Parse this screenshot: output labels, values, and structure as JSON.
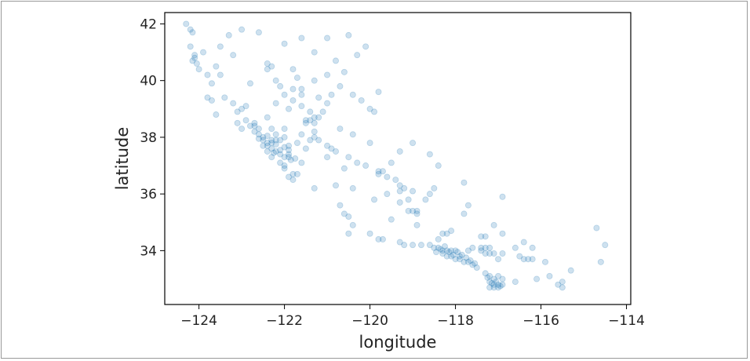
{
  "chart_data": {
    "type": "scatter",
    "title": "",
    "xlabel": "longitude",
    "ylabel": "latitude",
    "xlim": [
      -124.8,
      -113.9
    ],
    "ylim": [
      32.1,
      42.4
    ],
    "x_ticks": [
      -124,
      -122,
      -120,
      -118,
      -116,
      -114
    ],
    "x_tick_labels": [
      "−124",
      "−122",
      "−120",
      "−118",
      "−116",
      "−114"
    ],
    "y_ticks": [
      34,
      36,
      38,
      40,
      42
    ],
    "y_tick_labels": [
      "34",
      "36",
      "38",
      "40",
      "42"
    ],
    "grid": false,
    "legend": "none",
    "point_color": "#1f77b4",
    "point_alpha": 0.1,
    "points": [
      [
        -124.2,
        41.8
      ],
      [
        -124.15,
        41.7
      ],
      [
        -124.1,
        40.8
      ],
      [
        -124.15,
        40.7
      ],
      [
        -124.05,
        40.6
      ],
      [
        -124.1,
        40.9
      ],
      [
        -123.8,
        39.4
      ],
      [
        -123.7,
        39.3
      ],
      [
        -123.5,
        40.2
      ],
      [
        -123.9,
        41.0
      ],
      [
        -123.3,
        41.6
      ],
      [
        -123.6,
        40.5
      ],
      [
        -123.2,
        39.2
      ],
      [
        -123.0,
        39.0
      ],
      [
        -123.1,
        38.9
      ],
      [
        -122.9,
        38.6
      ],
      [
        -122.7,
        38.4
      ],
      [
        -122.6,
        38.3
      ],
      [
        -122.5,
        38.0
      ],
      [
        -122.4,
        37.8
      ],
      [
        -122.3,
        37.8
      ],
      [
        -122.3,
        37.6
      ],
      [
        -122.2,
        37.5
      ],
      [
        -122.1,
        37.4
      ],
      [
        -122.0,
        37.3
      ],
      [
        -121.9,
        37.3
      ],
      [
        -121.9,
        37.4
      ],
      [
        -122.0,
        37.0
      ],
      [
        -121.9,
        36.6
      ],
      [
        -121.8,
        36.7
      ],
      [
        -121.7,
        36.7
      ],
      [
        -122.4,
        37.7
      ],
      [
        -122.5,
        37.7
      ],
      [
        -122.3,
        37.9
      ],
      [
        -122.2,
        37.9
      ],
      [
        -122.1,
        37.9
      ],
      [
        -122.0,
        38.0
      ],
      [
        -122.2,
        38.1
      ],
      [
        -122.6,
        38.1
      ],
      [
        -122.7,
        38.2
      ],
      [
        -122.8,
        38.4
      ],
      [
        -122.7,
        38.5
      ],
      [
        -122.3,
        38.3
      ],
      [
        -122.0,
        38.3
      ],
      [
        -121.5,
        38.6
      ],
      [
        -121.4,
        38.6
      ],
      [
        -121.3,
        38.7
      ],
      [
        -121.2,
        38.7
      ],
      [
        -121.5,
        38.5
      ],
      [
        -121.3,
        38.5
      ],
      [
        -121.4,
        38.9
      ],
      [
        -121.1,
        38.9
      ],
      [
        -121.0,
        39.2
      ],
      [
        -121.6,
        39.7
      ],
      [
        -121.8,
        39.7
      ],
      [
        -122.4,
        40.6
      ],
      [
        -122.3,
        40.5
      ],
      [
        -122.4,
        40.4
      ],
      [
        -122.2,
        40.0
      ],
      [
        -122.1,
        39.8
      ],
      [
        -122.0,
        39.5
      ],
      [
        -121.6,
        39.1
      ],
      [
        -121.9,
        39.0
      ],
      [
        -121.3,
        38.2
      ],
      [
        -121.3,
        38.0
      ],
      [
        -121.2,
        37.9
      ],
      [
        -121.0,
        37.7
      ],
      [
        -120.9,
        37.6
      ],
      [
        -120.8,
        37.5
      ],
      [
        -120.5,
        37.3
      ],
      [
        -120.3,
        37.1
      ],
      [
        -120.1,
        37.0
      ],
      [
        -119.8,
        36.8
      ],
      [
        -119.7,
        36.8
      ],
      [
        -119.8,
        36.7
      ],
      [
        -119.6,
        36.6
      ],
      [
        -119.4,
        36.5
      ],
      [
        -119.3,
        36.3
      ],
      [
        -119.2,
        36.2
      ],
      [
        -119.3,
        36.1
      ],
      [
        -119.0,
        36.1
      ],
      [
        -119.1,
        35.8
      ],
      [
        -119.0,
        35.4
      ],
      [
        -119.1,
        35.4
      ],
      [
        -118.9,
        35.3
      ],
      [
        -118.9,
        35.4
      ],
      [
        -119.3,
        35.7
      ],
      [
        -120.7,
        35.6
      ],
      [
        -120.6,
        35.3
      ],
      [
        -120.5,
        35.2
      ],
      [
        -120.4,
        34.9
      ],
      [
        -120.5,
        34.6
      ],
      [
        -119.8,
        34.4
      ],
      [
        -119.7,
        34.4
      ],
      [
        -119.3,
        34.3
      ],
      [
        -119.2,
        34.2
      ],
      [
        -119.0,
        34.2
      ],
      [
        -118.8,
        34.2
      ],
      [
        -118.6,
        34.2
      ],
      [
        -118.5,
        34.1
      ],
      [
        -118.4,
        34.1
      ],
      [
        -118.3,
        34.0
      ],
      [
        -118.2,
        34.0
      ],
      [
        -118.1,
        34.0
      ],
      [
        -118.0,
        34.0
      ],
      [
        -118.3,
        33.9
      ],
      [
        -118.2,
        33.8
      ],
      [
        -118.1,
        33.8
      ],
      [
        -118.0,
        33.7
      ],
      [
        -117.9,
        33.7
      ],
      [
        -117.9,
        33.8
      ],
      [
        -117.8,
        33.6
      ],
      [
        -117.7,
        33.6
      ],
      [
        -117.6,
        33.5
      ],
      [
        -117.5,
        33.4
      ],
      [
        -117.3,
        33.2
      ],
      [
        -117.2,
        33.1
      ],
      [
        -117.2,
        32.9
      ],
      [
        -117.1,
        32.8
      ],
      [
        -117.1,
        32.7
      ],
      [
        -117.0,
        32.7
      ],
      [
        -117.0,
        32.8
      ],
      [
        -117.2,
        32.7
      ],
      [
        -116.9,
        32.8
      ],
      [
        -116.9,
        33.0
      ],
      [
        -117.7,
        34.0
      ],
      [
        -117.6,
        34.1
      ],
      [
        -117.4,
        34.1
      ],
      [
        -117.3,
        34.1
      ],
      [
        -117.2,
        34.1
      ],
      [
        -117.4,
        34.0
      ],
      [
        -117.3,
        33.9
      ],
      [
        -117.2,
        33.9
      ],
      [
        -117.1,
        33.9
      ],
      [
        -117.0,
        33.7
      ],
      [
        -116.9,
        33.9
      ],
      [
        -116.5,
        33.8
      ],
      [
        -116.4,
        33.7
      ],
      [
        -116.3,
        33.7
      ],
      [
        -116.2,
        33.7
      ],
      [
        -115.6,
        32.8
      ],
      [
        -115.5,
        32.7
      ],
      [
        -115.5,
        32.9
      ],
      [
        -114.6,
        33.6
      ],
      [
        -114.7,
        34.8
      ],
      [
        -116.2,
        34.1
      ],
      [
        -116.4,
        34.3
      ],
      [
        -117.3,
        34.5
      ],
      [
        -117.1,
        34.9
      ],
      [
        -117.8,
        35.3
      ],
      [
        -117.7,
        35.6
      ],
      [
        -118.1,
        34.7
      ],
      [
        -118.2,
        34.6
      ],
      [
        -118.3,
        34.6
      ],
      [
        -118.4,
        34.4
      ],
      [
        -117.8,
        36.4
      ],
      [
        -116.9,
        35.9
      ],
      [
        -118.5,
        36.2
      ],
      [
        -120.7,
        38.3
      ],
      [
        -120.2,
        39.3
      ],
      [
        -120.0,
        39.0
      ],
      [
        -119.9,
        38.9
      ],
      [
        -120.4,
        38.1
      ],
      [
        -120.0,
        37.8
      ],
      [
        -120.6,
        40.3
      ],
      [
        -120.5,
        41.6
      ],
      [
        -121.0,
        41.5
      ],
      [
        -122.0,
        41.3
      ],
      [
        -122.6,
        41.7
      ],
      [
        -123.0,
        41.8
      ],
      [
        -120.1,
        41.2
      ],
      [
        -121.7,
        40.1
      ],
      [
        -121.8,
        40.4
      ],
      [
        -120.8,
        40.7
      ],
      [
        -123.2,
        40.9
      ],
      [
        -123.5,
        41.2
      ],
      [
        -122.8,
        39.9
      ],
      [
        -123.4,
        39.4
      ],
      [
        -122.9,
        39.1
      ],
      [
        -123.6,
        38.8
      ],
      [
        -121.5,
        37.6
      ],
      [
        -121.4,
        37.9
      ],
      [
        -121.0,
        37.3
      ],
      [
        -120.6,
        36.9
      ],
      [
        -120.4,
        36.2
      ],
      [
        -120.8,
        36.3
      ],
      [
        -121.3,
        36.2
      ],
      [
        -119.6,
        36.0
      ],
      [
        -119.9,
        35.8
      ],
      [
        -118.7,
        35.8
      ],
      [
        -118.6,
        36.0
      ],
      [
        -119.5,
        35.1
      ],
      [
        -118.9,
        34.9
      ],
      [
        -120.0,
        34.6
      ],
      [
        -117.4,
        34.5
      ],
      [
        -116.9,
        34.6
      ],
      [
        -116.6,
        34.1
      ],
      [
        -115.9,
        33.6
      ],
      [
        -115.8,
        33.1
      ],
      [
        -116.1,
        33.0
      ],
      [
        -116.6,
        32.9
      ],
      [
        -115.3,
        33.3
      ],
      [
        -114.5,
        34.2
      ],
      [
        -119.5,
        37.1
      ],
      [
        -119.3,
        37.5
      ],
      [
        -119.0,
        37.8
      ],
      [
        -118.6,
        37.4
      ],
      [
        -118.4,
        37.0
      ],
      [
        -120.9,
        39.5
      ],
      [
        -121.2,
        39.4
      ],
      [
        -121.6,
        38.1
      ],
      [
        -121.7,
        37.8
      ],
      [
        -121.9,
        37.7
      ],
      [
        -121.6,
        37.1
      ],
      [
        -122.0,
        36.9
      ],
      [
        -121.8,
        36.5
      ],
      [
        -122.1,
        37.1
      ],
      [
        -122.3,
        37.3
      ],
      [
        -122.4,
        37.5
      ],
      [
        -122.5,
        37.9
      ],
      [
        -122.6,
        37.95
      ],
      [
        -123.0,
        38.3
      ],
      [
        -123.1,
        38.5
      ],
      [
        -122.4,
        38.7
      ],
      [
        -122.2,
        39.2
      ],
      [
        -121.8,
        39.3
      ],
      [
        -121.6,
        39.5
      ],
      [
        -121.3,
        40.0
      ],
      [
        -121.0,
        40.2
      ],
      [
        -120.7,
        39.8
      ],
      [
        -120.4,
        39.5
      ],
      [
        -121.3,
        41.0
      ],
      [
        -121.6,
        41.5
      ],
      [
        -120.3,
        40.9
      ],
      [
        -119.8,
        39.6
      ],
      [
        -124.0,
        40.4
      ],
      [
        -123.8,
        40.2
      ],
      [
        -123.7,
        39.9
      ],
      [
        -124.2,
        41.2
      ],
      [
        -124.3,
        42.0
      ],
      [
        -122.4,
        38.05
      ],
      [
        -122.2,
        37.75
      ],
      [
        -122.0,
        37.65
      ],
      [
        -122.1,
        37.55
      ],
      [
        -121.9,
        37.55
      ],
      [
        -122.25,
        37.45
      ],
      [
        -121.85,
        37.2
      ],
      [
        -121.75,
        37.25
      ],
      [
        -118.15,
        33.95
      ],
      [
        -118.05,
        33.85
      ],
      [
        -117.95,
        33.95
      ],
      [
        -117.85,
        33.85
      ],
      [
        -117.75,
        33.75
      ],
      [
        -118.35,
        34.05
      ],
      [
        -118.45,
        33.95
      ],
      [
        -118.25,
        34.15
      ],
      [
        -117.65,
        33.65
      ],
      [
        -117.55,
        33.55
      ],
      [
        -117.15,
        32.85
      ],
      [
        -117.05,
        32.9
      ],
      [
        -117.25,
        33.05
      ],
      [
        -117.1,
        33.0
      ],
      [
        -117.0,
        33.1
      ],
      [
        -116.95,
        32.75
      ]
    ]
  }
}
